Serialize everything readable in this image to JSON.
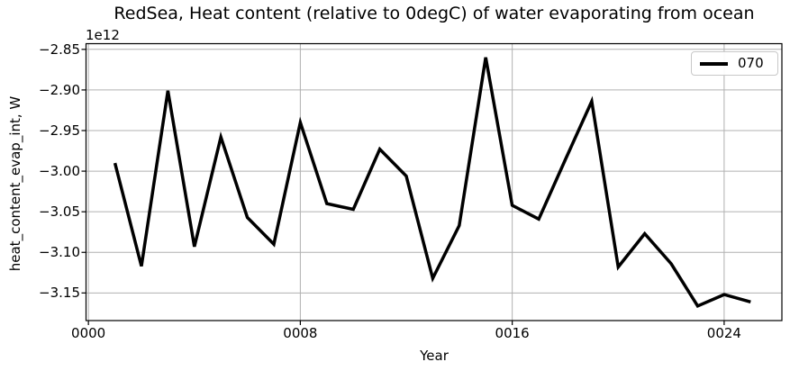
{
  "chart_data": {
    "type": "line",
    "title": "RedSea, Heat content (relative to 0degC) of water evaporating from ocean",
    "xlabel": "Year",
    "ylabel": "heat_content_evap_int, W",
    "offset_text": "1e12",
    "unit": "W",
    "unit_scale": 1000000000000.0,
    "x": [
      1,
      2,
      3,
      4,
      5,
      6,
      7,
      8,
      9,
      10,
      11,
      12,
      13,
      14,
      15,
      16,
      17,
      18,
      19,
      20,
      21,
      22,
      23,
      24,
      25
    ],
    "series": [
      {
        "name": "070",
        "color": "#000000",
        "values_1e12": [
          -2.99,
          -3.117,
          -2.901,
          -3.093,
          -2.958,
          -3.057,
          -3.09,
          -2.94,
          -3.04,
          -3.047,
          -2.973,
          -3.006,
          -3.132,
          -3.067,
          -2.86,
          -3.042,
          -3.059,
          -2.986,
          -2.914,
          -3.118,
          -3.077,
          -3.114,
          -3.166,
          -3.152,
          -3.161
        ]
      }
    ],
    "xticks": {
      "values": [
        0,
        8,
        16,
        24
      ],
      "labels": [
        "0000",
        "0008",
        "0016",
        "0024"
      ]
    },
    "yticks": {
      "values_1e12": [
        -2.85,
        -2.9,
        -2.95,
        -3.0,
        -3.05,
        -3.1,
        -3.15
      ],
      "labels": [
        "−2.85",
        "−2.90",
        "−2.95",
        "−3.00",
        "−3.05",
        "−3.10",
        "−3.15"
      ]
    },
    "xlim": [
      -0.09,
      26.18
    ],
    "ylim_1e12": [
      -3.184,
      -2.843
    ],
    "grid": true,
    "grid_color": "#b0b0b0",
    "spine_color": "#000000",
    "legend": {
      "position": "upper right",
      "entries": [
        "070"
      ]
    }
  }
}
